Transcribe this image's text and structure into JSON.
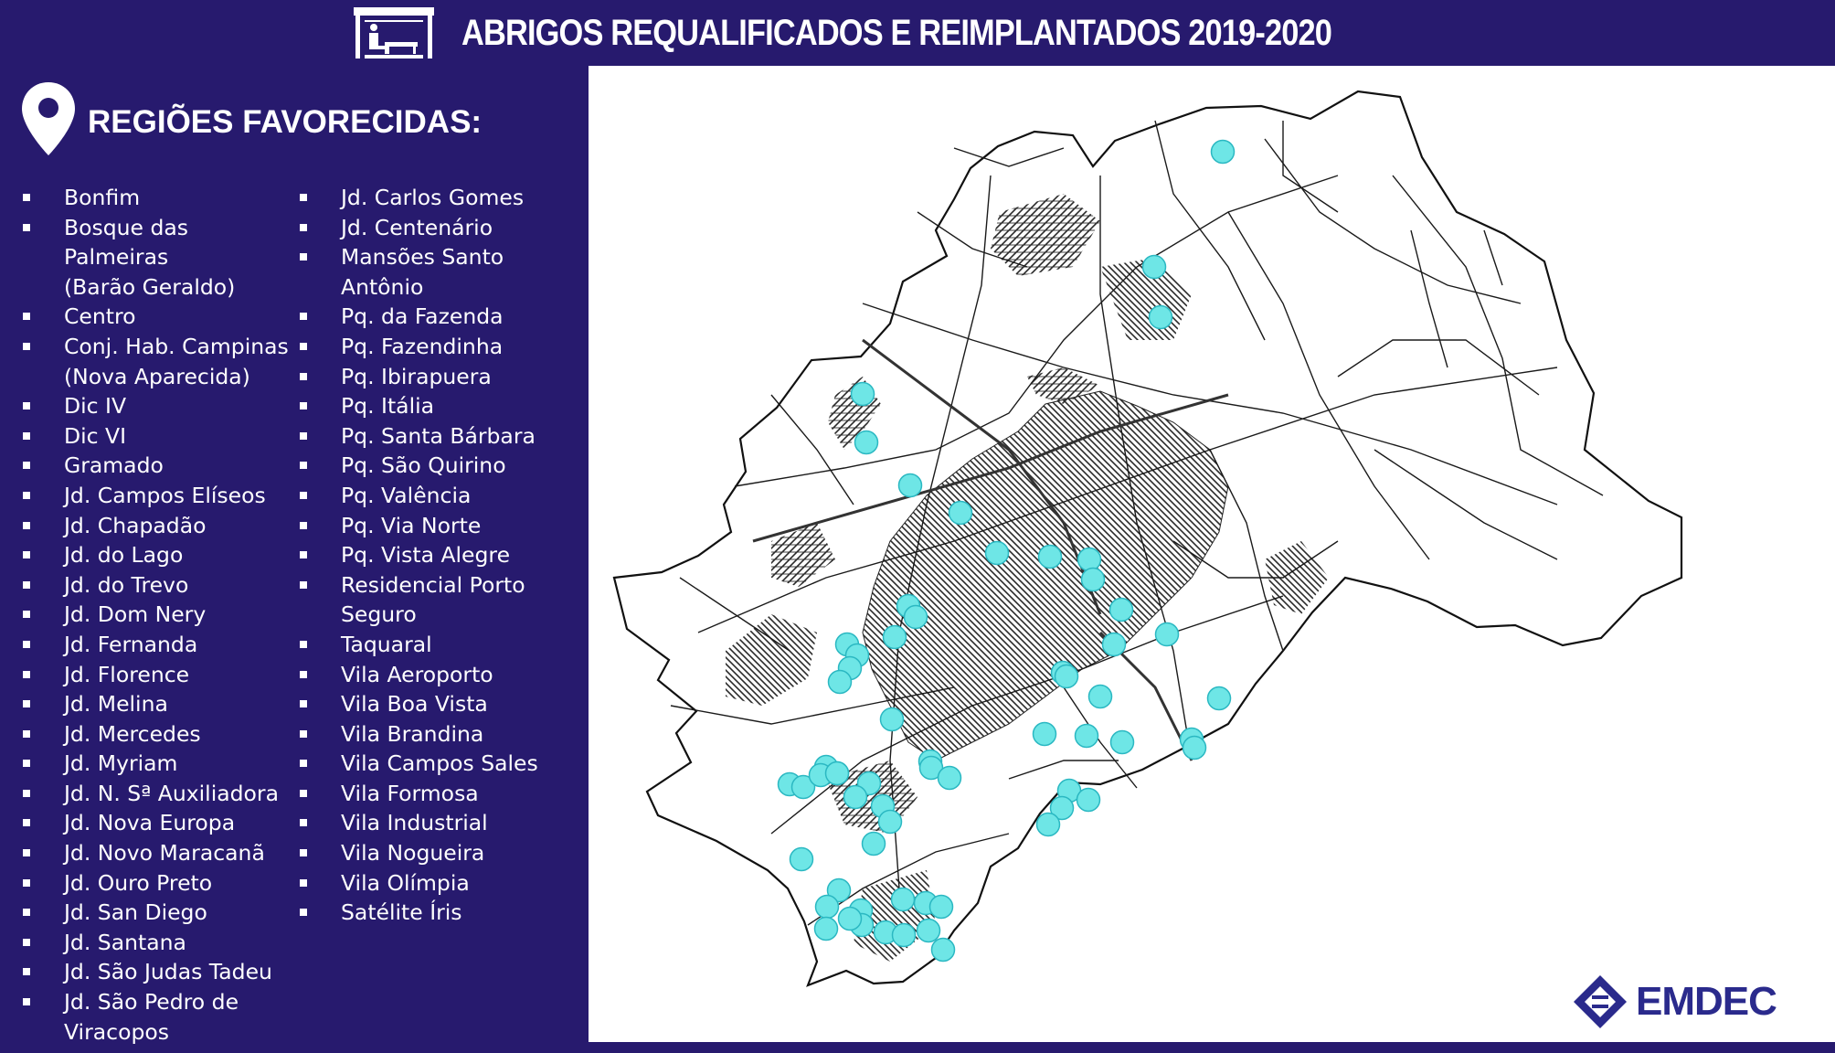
{
  "header": {
    "title": "ABRIGOS REQUALIFICADOS E REIMPLANTADOS 2019-2020",
    "icon": "bus-shelter-icon"
  },
  "sidebar": {
    "heading": "REGIÕES FAVORECIDAS:",
    "heading_icon": "map-pin-icon",
    "column1": [
      "Bonfim",
      "Bosque das Palmeiras\n(Barão Geraldo)",
      "Centro",
      "Conj. Hab. Campinas\n(Nova Aparecida)",
      "Dic IV",
      "Dic VI",
      "Gramado",
      "Jd. Campos Elíseos",
      "Jd. Chapadão",
      "Jd. do Lago",
      "Jd. do Trevo",
      "Jd. Dom Nery",
      "Jd. Fernanda",
      "Jd. Florence",
      "Jd. Melina",
      "Jd. Mercedes",
      "Jd. Myriam",
      "Jd. N. Sª Auxiliadora",
      "Jd. Nova Europa",
      "Jd. Novo Maracanã",
      "Jd. Ouro Preto",
      "Jd. San Diego",
      "Jd. Santana",
      "Jd. São Judas Tadeu",
      "Jd. São Pedro de\nViracopos"
    ],
    "column2": [
      "Jd. Carlos Gomes",
      "Jd. Centenário",
      "Mansões Santo\nAntônio",
      "Pq. da Fazenda",
      "Pq. Fazendinha",
      "Pq. Ibirapuera",
      "Pq. Itália",
      "Pq. Santa Bárbara",
      "Pq. São Quirino",
      "Pq. Valência",
      "Pq. Via Norte",
      "Pq. Vista Alegre",
      "Residencial Porto\nSeguro",
      "Taquaral",
      "Vila Aeroporto",
      "Vila Boa Vista",
      "Vila Brandina",
      "Vila Campos Sales",
      "Vila Formosa",
      "Vila Industrial",
      "Vila Nogueira",
      "Vila Olímpia",
      "Satélite Íris"
    ]
  },
  "map": {
    "road_color": "#1a1a1a",
    "marker_color": "#6ee6e6"
  },
  "logo": {
    "text": "EMDEC",
    "color": "#2a2a8c"
  }
}
